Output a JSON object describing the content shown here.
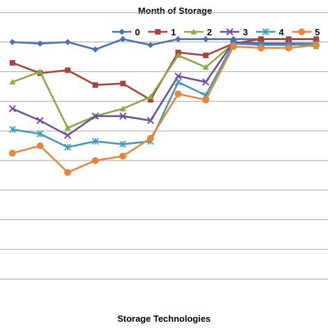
{
  "chart_data": {
    "type": "line",
    "title": "Month of Storage",
    "xlabel": "Storage Technologies",
    "ylabel": "",
    "ylim": [
      0,
      100
    ],
    "grid": true,
    "legend_position": "top-right",
    "x": [
      1,
      2,
      3,
      4,
      5,
      6,
      7,
      8,
      9,
      10,
      11,
      12
    ],
    "series": [
      {
        "name": "0",
        "color": "#4a72b0",
        "marker": "diamond",
        "values": [
          90,
          89.5,
          90,
          87.5,
          91,
          89,
          91,
          91,
          91,
          91,
          91,
          91
        ]
      },
      {
        "name": "1",
        "color": "#b0403c",
        "marker": "square",
        "values": [
          83,
          79.5,
          80.5,
          75.5,
          76,
          70.5,
          86.5,
          85.5,
          89.5,
          91,
          91,
          91
        ]
      },
      {
        "name": "2",
        "color": "#8aaa42",
        "marker": "triangle",
        "values": [
          76.5,
          80,
          61,
          65,
          67.5,
          71.5,
          85.5,
          81.5,
          89.5,
          89.5,
          89.5,
          88.5
        ]
      },
      {
        "name": "3",
        "color": "#6f4f96",
        "marker": "x",
        "values": [
          67.5,
          63.5,
          58.5,
          65,
          65,
          63.5,
          78.5,
          76.5,
          90,
          89.5,
          89.5,
          89.5
        ]
      },
      {
        "name": "4",
        "color": "#3f9bb8",
        "marker": "star",
        "values": [
          60.5,
          59,
          54.5,
          56.5,
          55.5,
          56.5,
          76.5,
          72,
          89.5,
          89,
          89,
          89.5
        ]
      },
      {
        "name": "5",
        "color": "#e8873a",
        "marker": "circle",
        "values": [
          52.5,
          55,
          46,
          50,
          51.5,
          57.5,
          72.5,
          70.5,
          88.5,
          88,
          88,
          89
        ]
      }
    ]
  }
}
